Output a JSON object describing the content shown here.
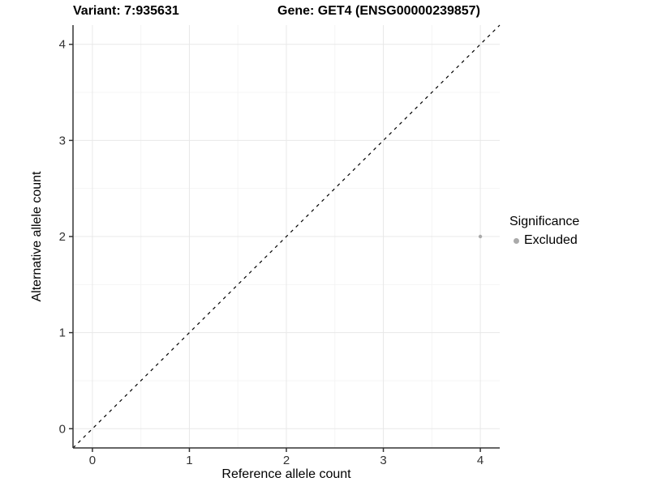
{
  "chart_data": {
    "type": "scatter",
    "title_left": "Variant: 7:935631",
    "title_right": "Gene: GET4 (ENSG00000239857)",
    "xlabel": "Reference allele count",
    "ylabel": "Alternative allele count",
    "xlim": [
      -0.2,
      4.2
    ],
    "ylim": [
      -0.2,
      4.2
    ],
    "x_ticks": [
      0,
      1,
      2,
      3,
      4
    ],
    "y_ticks": [
      0,
      1,
      2,
      3,
      4
    ],
    "minor_ticks_x": [
      0.5,
      1.5,
      2.5,
      3.5
    ],
    "minor_ticks_y": [
      0.5,
      1.5,
      2.5,
      3.5
    ],
    "grid": true,
    "identity_line": {
      "from": [
        -0.2,
        -0.2
      ],
      "to": [
        4.2,
        4.2
      ],
      "style": "dashed",
      "color": "#000000"
    },
    "series": [
      {
        "name": "Excluded",
        "color": "#aaaaaa",
        "points": [
          {
            "x": 4,
            "y": 2
          }
        ]
      }
    ],
    "legend": {
      "title": "Significance",
      "position": "right",
      "entries": [
        {
          "label": "Excluded",
          "color": "#aaaaaa"
        }
      ]
    },
    "colors": {
      "background": "#ffffff",
      "grid_major": "#e8e8e8",
      "grid_minor": "#f4f4f4",
      "axis_line": "#333333",
      "tick_mark": "#333333",
      "tick_label": "#333333",
      "point": "#aaaaaa"
    }
  }
}
